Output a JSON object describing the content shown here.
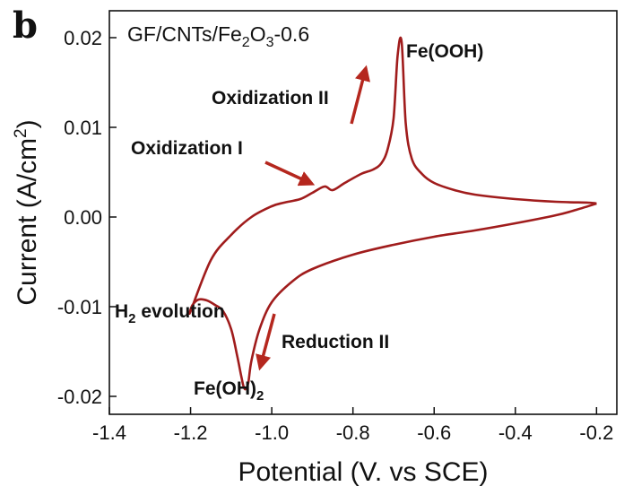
{
  "panel_label": "b",
  "chart_data": {
    "type": "line",
    "title": "",
    "xlabel": "Potential (V. vs SCE)",
    "ylabel_main": "Current (A/cm",
    "ylabel_sup": "2",
    "ylabel_tail": ")",
    "xlim": [
      -1.4,
      -0.15
    ],
    "ylim": [
      -0.022,
      0.023
    ],
    "x_ticks": [
      -1.4,
      -1.2,
      -1.0,
      -0.8,
      -0.6,
      -0.4,
      -0.2
    ],
    "x_tick_labels": [
      "-1.4",
      "-1.2",
      "-1.0",
      "-0.8",
      "-0.6",
      "-0.4",
      "-0.2"
    ],
    "y_ticks": [
      -0.02,
      -0.01,
      0.0,
      0.01,
      0.02
    ],
    "y_tick_labels": [
      "-0.02",
      "-0.01",
      "0.00",
      "0.01",
      "0.02"
    ],
    "grid": false,
    "line_color": "#a01c1c",
    "arrow_color": "#b5271e",
    "legend": {
      "main": "GF/CNTs/Fe",
      "sub1": "2",
      "mid": "O",
      "sub2": "3",
      "tail": "-0.6"
    },
    "series": [
      {
        "x": [
          -0.2,
          -0.22,
          -0.3,
          -0.4,
          -0.5,
          -0.55,
          -0.6,
          -0.63,
          -0.655,
          -0.67,
          -0.68,
          -0.69,
          -0.7,
          -0.715,
          -0.73,
          -0.75,
          -0.78,
          -0.82,
          -0.85,
          -0.87,
          -0.9,
          -0.93,
          -0.97,
          -1.0,
          -1.05,
          -1.1,
          -1.15,
          -1.2,
          -1.195,
          -1.18,
          -1.16,
          -1.14,
          -1.12,
          -1.1,
          -1.085,
          -1.075,
          -1.07,
          -1.065,
          -1.058,
          -1.05,
          -1.03,
          -1.0,
          -0.95,
          -0.9,
          -0.8,
          -0.7,
          -0.6,
          -0.5,
          -0.4,
          -0.3,
          -0.25,
          -0.2
        ],
        "y": [
          0.0015,
          0.0016,
          0.0017,
          0.002,
          0.0025,
          0.003,
          0.0038,
          0.0048,
          0.0065,
          0.0105,
          0.0195,
          0.018,
          0.011,
          0.0075,
          0.006,
          0.0053,
          0.0048,
          0.0038,
          0.003,
          0.0034,
          0.0027,
          0.002,
          0.0016,
          0.0012,
          0.0,
          -0.002,
          -0.0048,
          -0.0105,
          -0.0098,
          -0.0092,
          -0.0093,
          -0.0098,
          -0.0105,
          -0.0125,
          -0.0155,
          -0.0178,
          -0.0188,
          -0.0192,
          -0.0185,
          -0.016,
          -0.0125,
          -0.0095,
          -0.0072,
          -0.0058,
          -0.0042,
          -0.0031,
          -0.0022,
          -0.0015,
          -0.0007,
          0.0002,
          0.0008,
          0.0015
        ]
      }
    ],
    "annotations": {
      "fe_ooh": "Fe(OOH)",
      "oxidization_2": "Oxidization II",
      "oxidization_1": "Oxidization I",
      "h2_main": "H",
      "h2_sub": "2",
      "h2_tail": " evolution",
      "reduction_2": "Reduction II",
      "fe_oh2_main": "Fe(OH)",
      "fe_oh2_sub": "2"
    }
  }
}
